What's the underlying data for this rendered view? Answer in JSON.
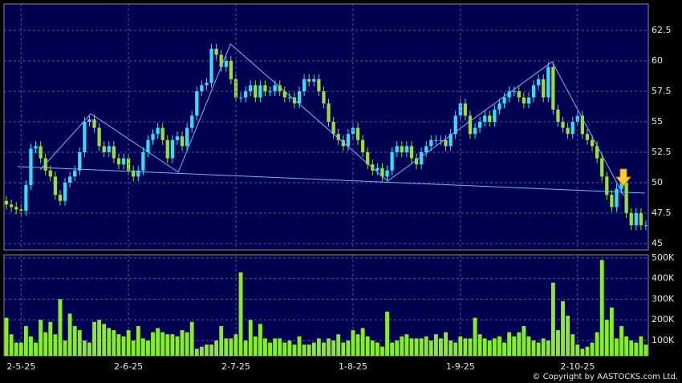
{
  "chart_data": [
    {
      "type": "candlestick",
      "up_color": "#33ddff",
      "down_color": "#99e033",
      "open": [
        48.5,
        48.2,
        48,
        47.8,
        47.7,
        49.8,
        52.8,
        53,
        52,
        51,
        50.5,
        49,
        48.5,
        50,
        50.5,
        51,
        52.5,
        55,
        55.2,
        54.5,
        53,
        52.5,
        53,
        52,
        51.5,
        52,
        51,
        50.5,
        51,
        52.5,
        53.5,
        54,
        54.5,
        53.5,
        52,
        53.5,
        53.8,
        53,
        54.5,
        55.5,
        57.5,
        58,
        58.2,
        61,
        60.5,
        59.5,
        60,
        58.5,
        57,
        57,
        57.5,
        58,
        57,
        58,
        57.5,
        57.5,
        58,
        57.5,
        57,
        57,
        56.5,
        57.5,
        58.5,
        58.3,
        58.5,
        57.5,
        56.5,
        55,
        54,
        53.5,
        53,
        54,
        54.5,
        53.5,
        52.5,
        51.5,
        51,
        51.2,
        50.5,
        51,
        52.5,
        53,
        52.5,
        53,
        52,
        51.5,
        52.5,
        53,
        53.5,
        53.5,
        53.5,
        53,
        54,
        55.5,
        56.5,
        55.5,
        54,
        54.5,
        55,
        55.5,
        55,
        56,
        56.5,
        57,
        57.5,
        57.5,
        57,
        56.5,
        57,
        58,
        58.5,
        57,
        59.5,
        56,
        55,
        54.5,
        54,
        55,
        55.5,
        54,
        53.5,
        53,
        52,
        50.5,
        49,
        48,
        49.5,
        50,
        47.5,
        46.5,
        47.5,
        46.5
      ],
      "high": [
        48.9,
        48.6,
        48.4,
        48.2,
        50.2,
        53.2,
        53.4,
        53.4,
        52.4,
        51.4,
        50.9,
        49.4,
        50.4,
        50.9,
        51.4,
        52.9,
        55.4,
        55.6,
        55.6,
        54.9,
        53.4,
        53.4,
        53.4,
        52.4,
        52.4,
        52.4,
        51.4,
        51.4,
        52.9,
        53.9,
        54.4,
        54.9,
        54.9,
        53.9,
        53.9,
        54.2,
        54.2,
        54.9,
        55.9,
        57.9,
        58.4,
        58.6,
        61.4,
        61.4,
        60.9,
        60.4,
        60.4,
        58.9,
        57.4,
        57.9,
        58.4,
        58.4,
        58.4,
        58.4,
        57.9,
        58.4,
        58.4,
        57.9,
        57.4,
        57.4,
        57.9,
        58.9,
        58.9,
        58.9,
        58.9,
        57.9,
        56.9,
        55.4,
        54.4,
        53.9,
        54.4,
        54.9,
        54.9,
        53.9,
        52.9,
        51.9,
        51.6,
        51.6,
        51.4,
        52.9,
        53.4,
        53.4,
        53.4,
        53.4,
        52.4,
        52.9,
        53.4,
        53.9,
        53.9,
        53.9,
        53.9,
        54.4,
        55.9,
        56.9,
        56.9,
        55.9,
        54.9,
        55.4,
        55.9,
        55.9,
        56.4,
        56.9,
        57.4,
        57.9,
        57.9,
        57.9,
        57.4,
        57.4,
        58.4,
        58.9,
        58.9,
        59.9,
        59.9,
        56.4,
        55.4,
        54.9,
        55.4,
        55.9,
        55.9,
        54.4,
        53.9,
        53.4,
        52.4,
        50.9,
        49.4,
        49.9,
        50.4,
        50.4,
        47.9,
        47.9,
        47.9,
        46.9
      ],
      "low": [
        47.8,
        47.6,
        47.4,
        47.3,
        47.3,
        49.4,
        52.4,
        51.6,
        50.6,
        50.1,
        48.6,
        48.1,
        48.1,
        49.6,
        50.1,
        50.6,
        52.1,
        54.6,
        54.1,
        52.6,
        52.1,
        52.1,
        51.6,
        51.1,
        51.1,
        50.6,
        50.1,
        50.1,
        50.6,
        52.1,
        53.1,
        53.6,
        53.1,
        51.6,
        51.6,
        53.1,
        52.6,
        52.6,
        54.1,
        55.1,
        57.1,
        57.6,
        57.8,
        60.1,
        59.1,
        59.1,
        58.1,
        56.6,
        56.6,
        56.6,
        57.1,
        56.6,
        56.6,
        57.1,
        57.1,
        57.1,
        57.1,
        56.6,
        56.6,
        56.1,
        56.1,
        57.1,
        57.9,
        57.9,
        57.1,
        56.1,
        54.6,
        53.6,
        53.1,
        52.6,
        52.6,
        53.6,
        53.1,
        52.1,
        51.1,
        50.6,
        50.6,
        50.1,
        50.1,
        50.6,
        52.1,
        52.1,
        52.1,
        51.6,
        51.1,
        51.1,
        52.1,
        52.6,
        53.1,
        53.1,
        52.6,
        52.6,
        53.6,
        55.1,
        55.1,
        53.6,
        53.6,
        54.1,
        54.6,
        54.6,
        54.6,
        55.6,
        56.1,
        56.6,
        57.1,
        56.6,
        56.1,
        56.1,
        56.6,
        57.6,
        56.6,
        56.6,
        55.6,
        54.6,
        54.1,
        53.6,
        53.6,
        54.6,
        53.6,
        53.1,
        52.6,
        51.6,
        50.1,
        48.6,
        47.6,
        47.6,
        49.1,
        47.1,
        46.1,
        46.1,
        46.1,
        46.1
      ],
      "close": [
        48.2,
        48,
        47.8,
        47.7,
        49.8,
        52.8,
        53,
        52,
        51,
        50.5,
        49,
        48.5,
        50,
        50.5,
        51,
        52.5,
        55,
        55.2,
        54.5,
        53,
        52.5,
        53,
        52,
        51.5,
        52,
        51,
        50.5,
        51,
        52.5,
        53.5,
        54,
        54.5,
        53.5,
        52,
        53.5,
        53.8,
        53,
        54.5,
        55.5,
        57.5,
        58,
        58.2,
        61,
        60.5,
        59.5,
        60,
        58.5,
        57,
        57,
        57.5,
        58,
        57,
        58,
        57.5,
        57.5,
        58,
        57.5,
        57,
        57,
        56.5,
        57.5,
        58.5,
        58.3,
        58.5,
        57.5,
        56.5,
        55,
        54,
        53.5,
        53,
        54,
        54.5,
        53.5,
        52.5,
        51.5,
        51,
        51.2,
        50.5,
        51,
        52.5,
        53,
        52.5,
        53,
        52,
        51.5,
        52.5,
        53,
        53.5,
        53.5,
        53.5,
        53,
        54,
        55.5,
        56.5,
        55.5,
        54,
        54.5,
        55,
        55.5,
        55,
        56,
        56.5,
        57,
        57.5,
        57.5,
        57,
        56.5,
        57,
        58,
        58.5,
        57,
        59.5,
        56,
        55,
        54.5,
        54,
        55,
        55.5,
        54,
        53.5,
        53,
        52,
        50.5,
        49,
        48,
        49.5,
        50,
        47.5,
        46.5,
        47.5,
        46.5,
        46.5
      ],
      "trendlines": [
        {
          "color": "#6fb8ff",
          "x": [
            2.3,
            130.8
          ],
          "y": [
            51.32,
            49.14
          ]
        },
        {
          "color": "#6fb8ff",
          "x": [
            6.9,
            17.3,
            35.2,
            45.9,
            78.1,
            111.8,
            126.5
          ],
          "y": [
            51.05,
            55.66,
            50.86,
            61.38,
            50.13,
            59.93,
            48.9
          ]
        }
      ],
      "ylim": [
        44.47,
        64.67
      ],
      "yticks": [
        45,
        47.5,
        50,
        52.5,
        55,
        57.5,
        60,
        62.5
      ],
      "grid": true
    },
    {
      "type": "bar",
      "categories": [
        null,
        null,
        null,
        "2-5-25",
        null,
        null,
        null,
        null,
        null,
        null,
        null,
        null,
        null,
        null,
        null,
        null,
        null,
        null,
        null,
        null,
        null,
        null,
        null,
        null,
        null,
        "2-6-25",
        null,
        null,
        null,
        null,
        null,
        null,
        null,
        null,
        null,
        null,
        null,
        null,
        null,
        null,
        null,
        null,
        null,
        null,
        null,
        null,
        null,
        "2-7-25",
        null,
        null,
        null,
        null,
        null,
        null,
        null,
        null,
        null,
        null,
        null,
        null,
        null,
        null,
        null,
        null,
        null,
        null,
        null,
        null,
        null,
        null,
        null,
        "1-8-25",
        null,
        null,
        null,
        null,
        null,
        null,
        null,
        null,
        null,
        null,
        null,
        null,
        null,
        null,
        null,
        null,
        null,
        null,
        null,
        null,
        null,
        "1-9-25",
        null,
        null,
        null,
        null,
        null,
        null,
        null,
        null,
        null,
        null,
        null,
        null,
        null,
        null,
        null,
        null,
        null,
        null,
        null,
        null,
        null,
        null,
        null,
        "2-10-25",
        null,
        null,
        null,
        null,
        null,
        null,
        null,
        null,
        null,
        null,
        null,
        null,
        null,
        null
      ],
      "values": [
        210000,
        130000,
        90000,
        90000,
        170000,
        120000,
        90000,
        200000,
        140000,
        190000,
        130000,
        300000,
        100000,
        230000,
        170000,
        150000,
        100000,
        90000,
        190000,
        200000,
        180000,
        160000,
        150000,
        130000,
        120000,
        150000,
        100000,
        170000,
        110000,
        100000,
        140000,
        160000,
        140000,
        130000,
        130000,
        120000,
        150000,
        140000,
        190000,
        60000,
        70000,
        80000,
        80000,
        100000,
        170000,
        110000,
        110000,
        130000,
        430000,
        100000,
        200000,
        120000,
        180000,
        110000,
        90000,
        110000,
        110000,
        90000,
        100000,
        80000,
        120000,
        80000,
        80000,
        90000,
        110000,
        90000,
        110000,
        100000,
        130000,
        90000,
        100000,
        150000,
        130000,
        160000,
        120000,
        100000,
        90000,
        70000,
        240000,
        90000,
        100000,
        120000,
        130000,
        110000,
        110000,
        110000,
        120000,
        100000,
        130000,
        110000,
        140000,
        100000,
        90000,
        120000,
        110000,
        110000,
        210000,
        130000,
        110000,
        100000,
        110000,
        120000,
        90000,
        140000,
        120000,
        140000,
        170000,
        120000,
        100000,
        90000,
        110000,
        100000,
        380000,
        150000,
        290000,
        220000,
        130000,
        80000,
        60000,
        70000,
        90000,
        140000,
        490000,
        200000,
        260000,
        110000,
        170000,
        120000,
        100000,
        90000,
        120000,
        80000
      ],
      "color": "#88ee22",
      "ylim": [
        26000,
        515000
      ],
      "yticks": [
        {
          "value": 100000,
          "label": "100K"
        },
        {
          "value": 200000,
          "label": "200K"
        },
        {
          "value": 300000,
          "label": "300K"
        },
        {
          "value": 400000,
          "label": "400K"
        },
        {
          "value": 500000,
          "label": "500K"
        }
      ],
      "grid": true
    }
  ],
  "copyright": "© Copyright by AASTOCKS.com Ltd."
}
